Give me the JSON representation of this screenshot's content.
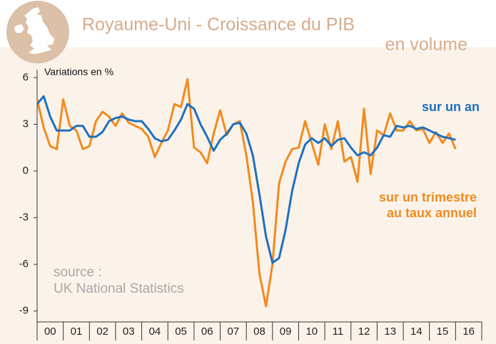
{
  "chart_data": {
    "type": "line",
    "title": "Royaume-Uni - Croissance du PIB",
    "subtitle": "en volume",
    "y_label": "Variations en %",
    "annotations": [
      "source :",
      "UK National Statistics"
    ],
    "x": [
      2000,
      2000.25,
      2000.5,
      2000.75,
      2001,
      2001.25,
      2001.5,
      2001.75,
      2002,
      2002.25,
      2002.5,
      2002.75,
      2003,
      2003.25,
      2003.5,
      2003.75,
      2004,
      2004.25,
      2004.5,
      2004.75,
      2005,
      2005.25,
      2005.5,
      2005.75,
      2006,
      2006.25,
      2006.5,
      2006.75,
      2007,
      2007.25,
      2007.5,
      2007.75,
      2008,
      2008.25,
      2008.5,
      2008.75,
      2009,
      2009.25,
      2009.5,
      2009.75,
      2010,
      2010.25,
      2010.5,
      2010.75,
      2011,
      2011.25,
      2011.5,
      2011.75,
      2012,
      2012.25,
      2012.5,
      2012.75,
      2013,
      2013.25,
      2013.5,
      2013.75,
      2014,
      2014.25,
      2014.5,
      2014.75,
      2015,
      2015.25,
      2015.5,
      2015.75,
      2016
    ],
    "series": [
      {
        "name": "sur un an",
        "color": "#1f70c1",
        "values": [
          4.3,
          4.8,
          3.5,
          2.6,
          2.6,
          2.6,
          2.9,
          2.9,
          2.2,
          2.2,
          2.5,
          3.2,
          3.4,
          3.5,
          3.3,
          3.2,
          3.2,
          2.7,
          2.1,
          1.9,
          2.0,
          2.6,
          3.3,
          4.3,
          4.0,
          3.0,
          2.2,
          1.3,
          2.0,
          2.4,
          3.0,
          3.1,
          2.4,
          1.0,
          -1.5,
          -4.2,
          -5.9,
          -5.6,
          -3.8,
          -1.3,
          0.5,
          1.7,
          2.1,
          1.8,
          2.1,
          1.6,
          2.0,
          2.1,
          1.5,
          1.0,
          1.2,
          1.0,
          1.5,
          2.3,
          2.2,
          2.9,
          2.8,
          2.9,
          2.7,
          2.8,
          2.6,
          2.4,
          2.2,
          2.1,
          2.0
        ]
      },
      {
        "name": "sur un trimestre au taux annuel",
        "color": "#f28a1e",
        "values": [
          4.6,
          2.8,
          1.6,
          1.4,
          4.6,
          2.9,
          2.6,
          1.4,
          1.6,
          3.2,
          3.8,
          3.5,
          2.9,
          3.7,
          3.1,
          2.9,
          2.7,
          2.2,
          0.9,
          1.8,
          2.6,
          4.3,
          4.1,
          5.9,
          1.5,
          1.2,
          0.5,
          2.4,
          3.9,
          2.3,
          3.0,
          3.2,
          1.0,
          -2.0,
          -6.6,
          -8.7,
          -6.0,
          -0.8,
          0.6,
          1.4,
          1.5,
          3.2,
          1.8,
          0.4,
          3.0,
          1.4,
          3.2,
          0.6,
          0.9,
          -0.7,
          4.0,
          -0.2,
          2.6,
          2.3,
          3.7,
          2.6,
          2.6,
          3.2,
          2.6,
          2.7,
          1.8,
          2.5,
          1.8,
          2.4,
          1.4
        ]
      }
    ],
    "legend_lines": [
      "sur un trimestre",
      "au taux annuel"
    ],
    "xlim": [
      2000,
      2017
    ],
    "xticks": [
      {
        "value": 2000.5,
        "label": "00"
      },
      {
        "value": 2001.5,
        "label": "01"
      },
      {
        "value": 2002.5,
        "label": "02"
      },
      {
        "value": 2003.5,
        "label": "03"
      },
      {
        "value": 2004.5,
        "label": "04"
      },
      {
        "value": 2005.5,
        "label": "05"
      },
      {
        "value": 2006.5,
        "label": "06"
      },
      {
        "value": 2007.5,
        "label": "07"
      },
      {
        "value": 2008.5,
        "label": "08"
      },
      {
        "value": 2009.5,
        "label": "09"
      },
      {
        "value": 2010.5,
        "label": "10"
      },
      {
        "value": 2011.5,
        "label": "11"
      },
      {
        "value": 2012.5,
        "label": "12"
      },
      {
        "value": 2013.5,
        "label": "13"
      },
      {
        "value": 2014.5,
        "label": "14"
      },
      {
        "value": 2015.5,
        "label": "15"
      },
      {
        "value": 2016.5,
        "label": "16"
      }
    ],
    "ylim": [
      -9.7,
      6.5
    ],
    "yticks": [
      6,
      3,
      0,
      -3,
      -6,
      -9
    ]
  }
}
